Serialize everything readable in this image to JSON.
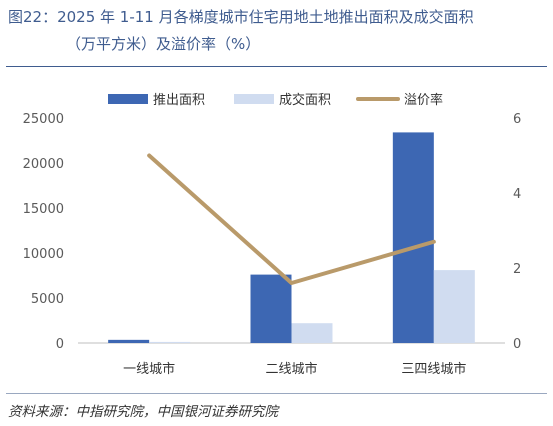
{
  "header": {
    "title_line1": "图22：2025 年 1-11 月各梯度城市住宅用地土地推出面积及成交面积",
    "title_line2": "（万平方米）及溢价率（%）"
  },
  "source": "资料来源：中指研究院，中国银河证券研究院",
  "colors": {
    "title": "#3f5c8f",
    "supply": "#3d67b3",
    "deal": "#d0dcf0",
    "premium": "#b99a6a",
    "axis": "#bfbfbf"
  },
  "chart_data": {
    "type": "bar",
    "categories": [
      "一线城市",
      "二线城市",
      "三四线城市"
    ],
    "series": [
      {
        "name": "推出面积",
        "type": "bar",
        "axis": "left",
        "values": [
          350,
          7600,
          23400
        ]
      },
      {
        "name": "成交面积",
        "type": "bar",
        "axis": "left",
        "values": [
          120,
          2200,
          8100
        ]
      },
      {
        "name": "溢价率",
        "type": "line",
        "axis": "right",
        "values": [
          5.0,
          1.6,
          2.7
        ]
      }
    ],
    "y_left": {
      "lim": [
        0,
        25000
      ],
      "ticks": [
        "0",
        "5000",
        "10000",
        "15000",
        "20000",
        "25000"
      ]
    },
    "y_right": {
      "lim": [
        0,
        6
      ],
      "ticks": [
        "0",
        "2",
        "4",
        "6"
      ]
    },
    "legend_position": "top",
    "grid": false
  }
}
